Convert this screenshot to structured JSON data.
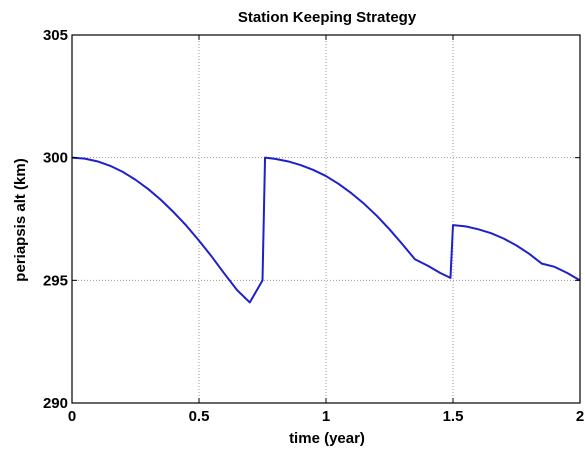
{
  "chart_data": {
    "type": "line",
    "title": "Station Keeping Strategy",
    "xlabel": "time (year)",
    "ylabel": "periapsis alt (km)",
    "xlim": [
      0,
      2
    ],
    "ylim": [
      290,
      305
    ],
    "xticks": [
      0,
      0.5,
      1,
      1.5,
      2
    ],
    "xtick_labels": [
      "0",
      "0.5",
      "1",
      "1.5",
      "2"
    ],
    "yticks": [
      290,
      295,
      300,
      305
    ],
    "ytick_labels": [
      "290",
      "295",
      "300",
      "305"
    ],
    "grid": true,
    "series": [
      {
        "color": "#1f1fcc",
        "x": [
          0,
          0.05,
          0.1,
          0.15,
          0.2,
          0.25,
          0.3,
          0.35,
          0.4,
          0.45,
          0.5,
          0.55,
          0.6,
          0.65,
          0.7,
          0.75,
          0.76,
          0.8,
          0.85,
          0.9,
          0.95,
          1.0,
          1.05,
          1.1,
          1.15,
          1.2,
          1.25,
          1.3,
          1.35,
          1.4,
          1.45,
          1.49,
          1.5,
          1.55,
          1.6,
          1.65,
          1.7,
          1.75,
          1.8,
          1.85,
          1.9,
          1.95,
          2.0
        ],
        "y": [
          300.0,
          299.96,
          299.85,
          299.67,
          299.42,
          299.1,
          298.72,
          298.28,
          297.78,
          297.23,
          296.62,
          295.97,
          295.27,
          294.6,
          294.1,
          295.0,
          300.0,
          299.95,
          299.85,
          299.7,
          299.5,
          299.25,
          298.93,
          298.55,
          298.12,
          297.63,
          297.08,
          296.48,
          295.86,
          295.6,
          295.3,
          295.1,
          297.25,
          297.2,
          297.08,
          296.92,
          296.7,
          296.42,
          296.08,
          295.68,
          295.55,
          295.3,
          295.0
        ]
      }
    ]
  }
}
